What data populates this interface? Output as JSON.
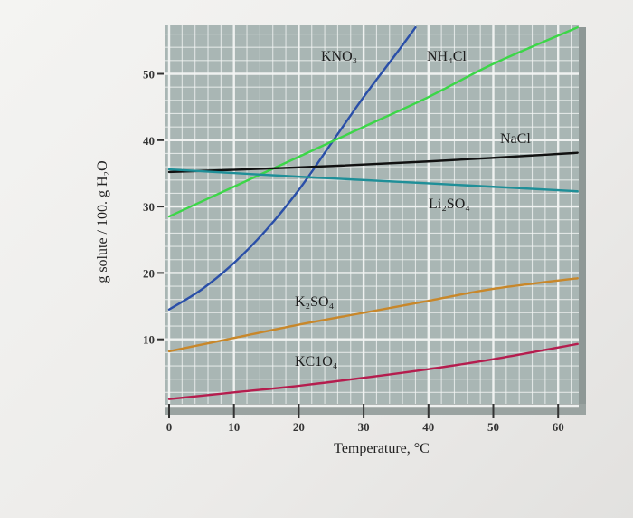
{
  "chart_data": {
    "type": "line",
    "title": "",
    "xlabel": "Temperature, °C",
    "ylabel": "g solute / 100. g H₂O",
    "xlim": [
      0,
      63
    ],
    "ylim": [
      0,
      57
    ],
    "xticks": [
      0,
      10,
      20,
      30,
      40,
      50,
      60
    ],
    "yticks": [
      10,
      20,
      30,
      40,
      50
    ],
    "grid": true,
    "background_color": "#a9b6b4",
    "series": [
      {
        "name": "KNO₃",
        "color": "#2a4fa8",
        "points": [
          [
            0,
            14.5
          ],
          [
            5,
            17.5
          ],
          [
            10,
            21.5
          ],
          [
            15,
            26.5
          ],
          [
            20,
            32.5
          ],
          [
            25,
            39.5
          ],
          [
            30,
            46.5
          ],
          [
            35,
            53
          ],
          [
            38,
            57
          ]
        ]
      },
      {
        "name": "NH₄Cl",
        "color": "#3cd648",
        "points": [
          [
            0,
            28.5
          ],
          [
            10,
            33
          ],
          [
            20,
            37.5
          ],
          [
            30,
            42
          ],
          [
            40,
            46.5
          ],
          [
            50,
            51.5
          ],
          [
            63,
            57
          ]
        ]
      },
      {
        "name": "NaCl",
        "color": "#111111",
        "points": [
          [
            0,
            35.2
          ],
          [
            20,
            35.9
          ],
          [
            40,
            36.8
          ],
          [
            63,
            38.1
          ]
        ]
      },
      {
        "name": "Li₂SO₄",
        "color": "#1f8f98",
        "points": [
          [
            0,
            35.6
          ],
          [
            20,
            34.5
          ],
          [
            40,
            33.5
          ],
          [
            63,
            32.3
          ]
        ]
      },
      {
        "name": "K₂SO₄",
        "color": "#c8872a",
        "points": [
          [
            0,
            8.2
          ],
          [
            10,
            10.2
          ],
          [
            20,
            12.2
          ],
          [
            30,
            14
          ],
          [
            40,
            15.8
          ],
          [
            50,
            17.6
          ],
          [
            63,
            19.2
          ]
        ]
      },
      {
        "name": "KClO₄",
        "color": "#b51d4e",
        "points": [
          [
            0,
            1
          ],
          [
            10,
            2
          ],
          [
            20,
            3
          ],
          [
            30,
            4.2
          ],
          [
            40,
            5.5
          ],
          [
            50,
            7
          ],
          [
            63,
            9.3
          ]
        ]
      }
    ],
    "labels": {
      "KNO3": "KNO₃",
      "NH4Cl": "NH₄Cl",
      "NaCl": "NaCl",
      "Li2SO4": "Li₂SO₄",
      "K2SO4": "K₂SO₄",
      "KClO4": "KC1O₄"
    }
  }
}
